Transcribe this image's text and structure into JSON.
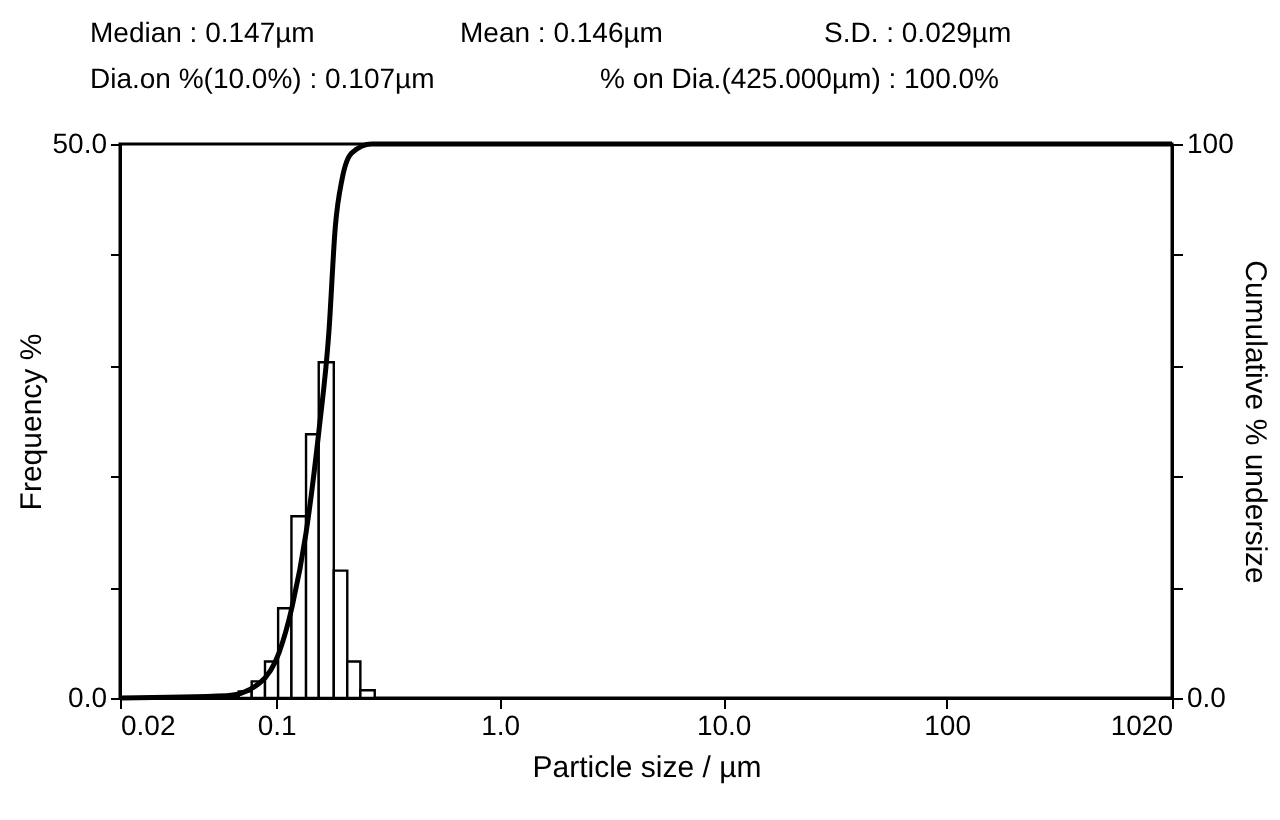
{
  "chart_data": {
    "type": "histogram",
    "xlabel": "Particle size / µm",
    "ylabel": "Frequency %",
    "y2label": "Cumulative % undersize",
    "annotations": [
      "Median : 0.147µm",
      "Mean : 0.146µm",
      "S.D. : 0.029µm",
      "Dia.on %(10.0%) : 0.107µm",
      "% on Dia.(425.000µm) : 100.0%"
    ],
    "log": "x",
    "bins": [
      0.068,
      0.0777,
      0.0891,
      0.102,
      0.117,
      0.136,
      0.155,
      0.181,
      0.208,
      0.238,
      0.276
    ],
    "series": [
      {
        "color": "#ffffff",
        "values": [
          0.6,
          1.5,
          3.3,
          8.1,
          16.4,
          23.8,
          30.3,
          11.5,
          3.3,
          0.7
        ]
      },
      {
        "type": "line",
        "axis": "y2",
        "color": "#000000",
        "x": [
          0.02,
          0.0602,
          0.0843,
          0.103,
          0.118,
          0.136,
          0.155,
          0.172,
          0.184,
          0.197,
          0.218,
          0.267,
          1020
        ],
        "values": [
          0,
          0.4,
          2.7,
          8.2,
          16.6,
          29.8,
          47.9,
          65.9,
          85.2,
          93.6,
          98.4,
          100,
          100
        ]
      }
    ],
    "xlim": [
      0.02,
      1020
    ],
    "xticks": [
      0.02,
      0.1,
      {
        "value": 1,
        "label": "1.0"
      },
      {
        "value": 10,
        "label": "10.0"
      },
      100,
      1020
    ],
    "ylim": [
      0,
      50
    ],
    "yticks": [
      {
        "value": 0,
        "label": "0.0"
      },
      {
        "value": 10,
        "label": null
      },
      {
        "value": 20,
        "label": null
      },
      {
        "value": 30,
        "label": null
      },
      {
        "value": 40,
        "label": null
      },
      {
        "value": 50,
        "label": "50.0"
      }
    ],
    "y2lim": [
      0,
      100
    ],
    "y2ticks": [
      {
        "value": 0,
        "label": "0.0"
      },
      {
        "value": 20,
        "label": null
      },
      {
        "value": 40,
        "label": null
      },
      {
        "value": 60,
        "label": null
      },
      {
        "value": 80,
        "label": null
      },
      100
    ],
    "grid": false,
    "marker": "none"
  }
}
